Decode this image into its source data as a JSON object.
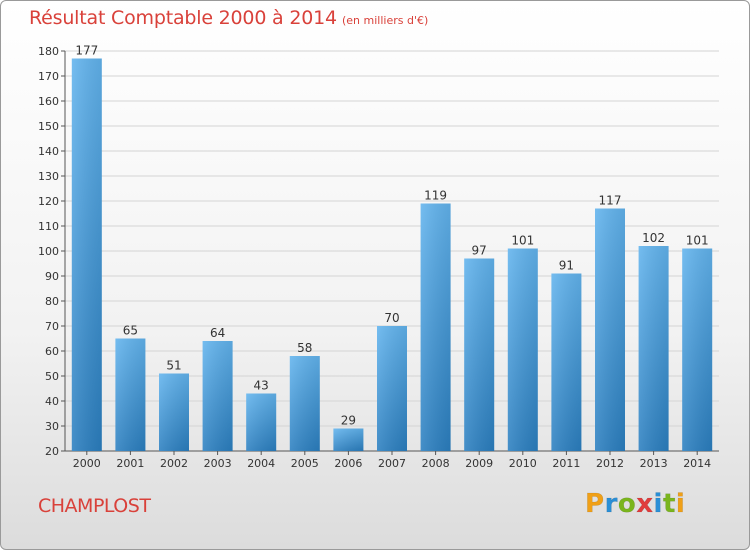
{
  "title": "Résultat Comptable 2000 à 2014",
  "subtitle": "(en milliers d'€)",
  "place": "CHAMPLOST",
  "logo": {
    "letters": [
      "P",
      "r",
      "o",
      "x",
      "i",
      "t",
      "i"
    ],
    "colors": [
      "#f0a017",
      "#2a8fd6",
      "#7ab51d",
      "#e03c3c",
      "#2a8fd6",
      "#7ab51d",
      "#f0a017"
    ]
  },
  "colors": {
    "title": "#d9413a",
    "bar_top": "#62b4ee",
    "bar_bottom": "#2b7fc0",
    "grid": "#d4d4d4"
  },
  "chart_data": {
    "type": "bar",
    "categories": [
      "2000",
      "2001",
      "2002",
      "2003",
      "2004",
      "2005",
      "2006",
      "2007",
      "2008",
      "2009",
      "2010",
      "2011",
      "2012",
      "2013",
      "2014"
    ],
    "values": [
      177,
      65,
      51,
      64,
      43,
      58,
      29,
      70,
      119,
      97,
      101,
      91,
      117,
      102,
      101
    ],
    "title": "Résultat Comptable 2000 à 2014",
    "xlabel": "",
    "ylabel": "",
    "ylim": [
      20,
      180
    ],
    "yticks": [
      20,
      30,
      40,
      50,
      60,
      70,
      80,
      90,
      100,
      110,
      120,
      130,
      140,
      150,
      160,
      170,
      180
    ],
    "grid": true,
    "legend": "none"
  }
}
